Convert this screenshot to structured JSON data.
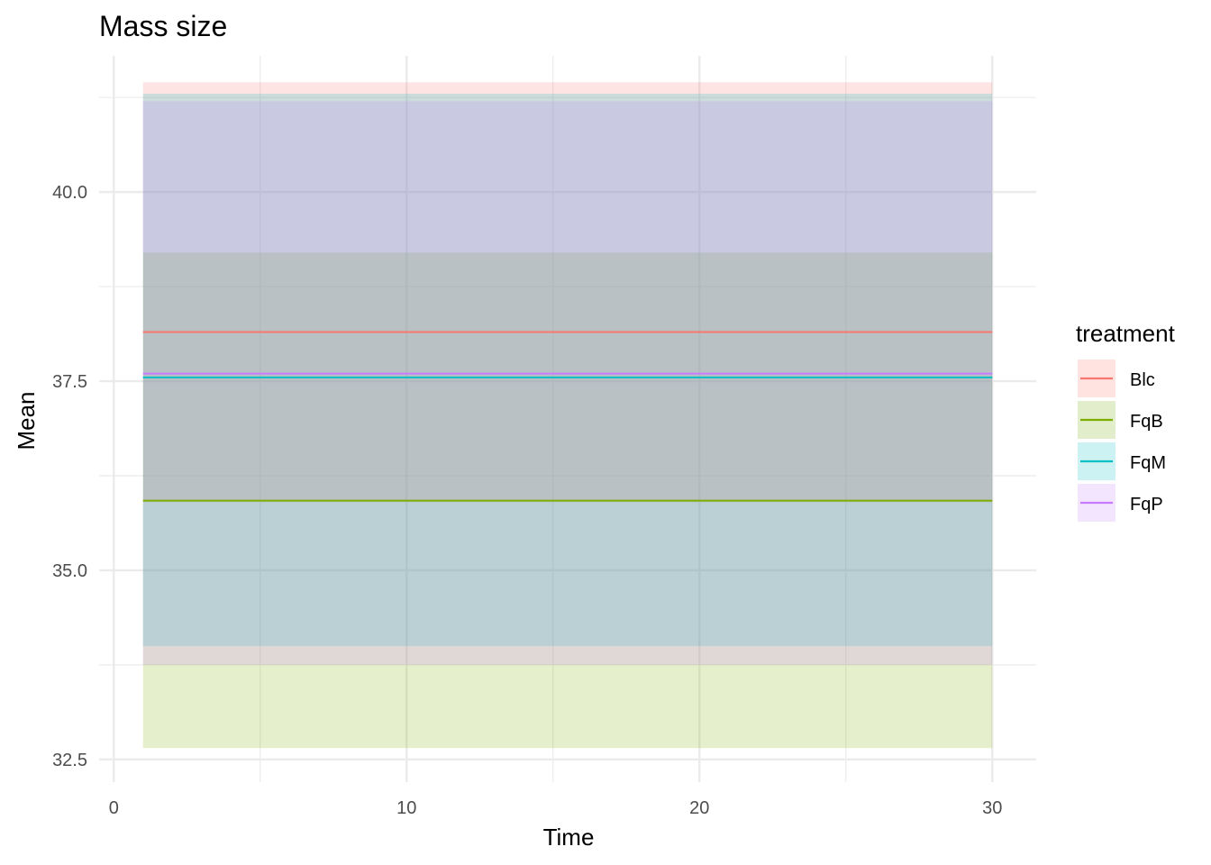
{
  "chart_data": {
    "type": "line",
    "title": "Mass size",
    "xlabel": "Time",
    "ylabel": "Mean",
    "xlim": [
      -0.5,
      31.5
    ],
    "ylim": [
      32.2,
      41.8
    ],
    "x_ticks": [
      0,
      10,
      20,
      30
    ],
    "x_tick_labels": [
      "0",
      "10",
      "20",
      "30"
    ],
    "x_minor_ticks": [
      5,
      15,
      25
    ],
    "y_ticks": [
      32.5,
      35.0,
      37.5,
      40.0
    ],
    "y_tick_labels": [
      "32.5",
      "35.0",
      "37.5",
      "40.0"
    ],
    "y_minor_ticks": [
      33.75,
      36.25,
      38.75,
      41.25
    ],
    "grid": true,
    "legend": {
      "title": "treatment",
      "position": "right"
    },
    "series": [
      {
        "name": "Blc",
        "color": "#F8766D",
        "x": [
          1,
          30
        ],
        "mean": 38.15,
        "lower": 35.9,
        "upper": 41.45,
        "ribbon_color": "#FFE3E1"
      },
      {
        "name": "FqB",
        "color": "#7CAE00",
        "x": [
          1,
          30
        ],
        "mean": 35.92,
        "lower": 32.65,
        "upper": 39.2,
        "ribbon_color": "#E2EDCC"
      },
      {
        "name": "FqM",
        "color": "#00BFC4",
        "x": [
          1,
          30
        ],
        "mean": 37.55,
        "lower": 34.0,
        "upper": 41.3,
        "ribbon_color": "#CCF2F3"
      },
      {
        "name": "FqP",
        "color": "#C77CFF",
        "x": [
          1,
          30
        ],
        "mean": 37.6,
        "lower": 33.75,
        "upper": 41.2,
        "ribbon_color": "#F4E5FF"
      }
    ]
  }
}
